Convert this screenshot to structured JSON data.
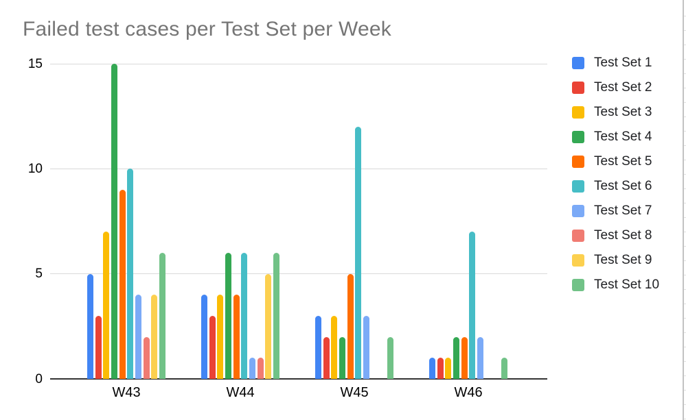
{
  "chart_data": {
    "type": "bar",
    "title": "Failed test cases per Test Set per Week",
    "title_color": "#757575",
    "xlabel": "",
    "ylabel": "",
    "categories": [
      "W43",
      "W44",
      "W45",
      "W46"
    ],
    "series": [
      {
        "name": "Test Set 1",
        "color": "#4285F4",
        "values": [
          5,
          4,
          3,
          1
        ]
      },
      {
        "name": "Test Set 2",
        "color": "#EA4335",
        "values": [
          3,
          3,
          2,
          1
        ]
      },
      {
        "name": "Test Set 3",
        "color": "#FBBC04",
        "values": [
          7,
          4,
          3,
          1
        ]
      },
      {
        "name": "Test Set 4",
        "color": "#34A853",
        "values": [
          15,
          6,
          2,
          2
        ]
      },
      {
        "name": "Test Set 5",
        "color": "#FF6D01",
        "values": [
          9,
          4,
          5,
          2
        ]
      },
      {
        "name": "Test Set 6",
        "color": "#46BDC6",
        "values": [
          10,
          6,
          12,
          7
        ]
      },
      {
        "name": "Test Set 7",
        "color": "#7BAAF7",
        "values": [
          4,
          1,
          3,
          2
        ]
      },
      {
        "name": "Test Set 8",
        "color": "#F07B72",
        "values": [
          2,
          1,
          0,
          0
        ]
      },
      {
        "name": "Test Set 9",
        "color": "#FCD04F",
        "values": [
          4,
          5,
          0,
          0
        ]
      },
      {
        "name": "Test Set 10",
        "color": "#71C287",
        "values": [
          6,
          6,
          2,
          1
        ]
      }
    ],
    "ylim": [
      0,
      15
    ],
    "yticks": [
      0,
      5,
      10,
      15
    ],
    "grid": true,
    "legend_position": "right",
    "axis_color": "#333333",
    "gridline_color": "#d9d9d9"
  }
}
